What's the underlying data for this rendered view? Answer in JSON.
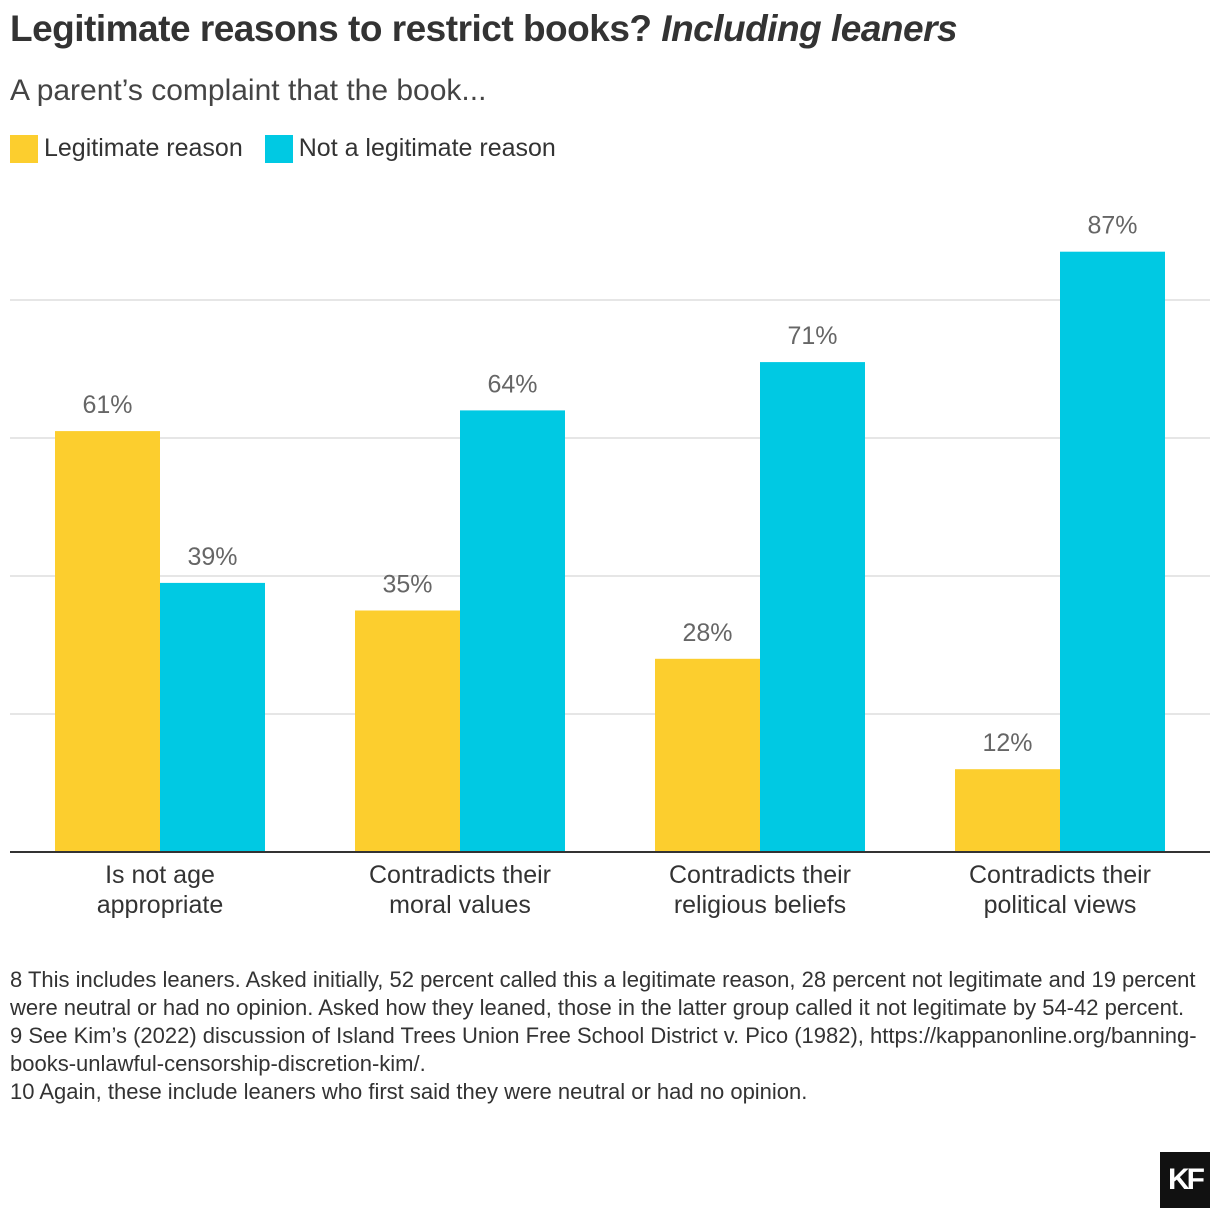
{
  "chart_data": {
    "type": "bar",
    "title": "Legitimate reasons to restrict books?",
    "title_emphasis": "Including leaners",
    "subtitle": "A parent’s complaint that the book...",
    "categories": [
      "Is not age appropriate",
      "Contradicts their moral values",
      "Contradicts their religious beliefs",
      "Contradicts their political views"
    ],
    "series": [
      {
        "name": "Legitimate reason",
        "color": "#fcce2e",
        "values": [
          61,
          35,
          28,
          12
        ],
        "value_labels": [
          "61%",
          "35%",
          "28%",
          "12%"
        ]
      },
      {
        "name": "Not a legitimate reason",
        "color": "#00c9e3",
        "values": [
          39,
          64,
          71,
          87
        ],
        "value_labels": [
          "39%",
          "64%",
          "71%",
          "87%"
        ]
      }
    ],
    "ylim": [
      0,
      100
    ],
    "yticks": [
      0,
      20,
      40,
      60,
      80
    ],
    "grid": true
  },
  "notes": [
    "8 This includes leaners. Asked initially, 52 percent called this a legitimate reason, 28 percent not legitimate and 19 percent were neutral or had no opinion. Asked how they leaned, those in the latter group called it not legitimate by 54-42 percent.",
    "9 See Kim’s (2022) discussion of Island Trees Union Free School District v. Pico (1982), https://kappanonline.org/banning-books-unlawful-censorship-discretion-kim/.",
    "10 Again, these include leaners who first said they were neutral or had no opinion."
  ],
  "logo": "KF"
}
